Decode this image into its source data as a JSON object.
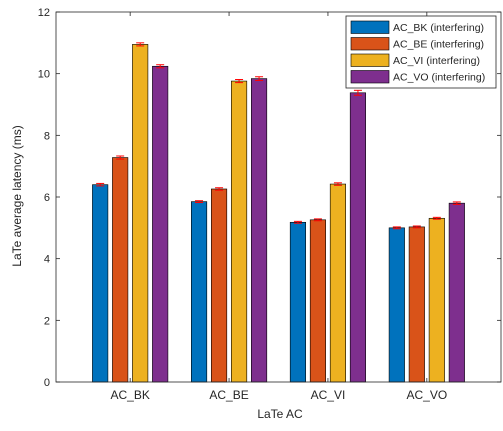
{
  "chart_data": {
    "type": "bar",
    "xlabel": "LaTe AC",
    "ylabel": "LaTe average latency (ms)",
    "ylim": [
      0,
      12
    ],
    "yticks": [
      0,
      2,
      4,
      6,
      8,
      10,
      12
    ],
    "grid": false,
    "legend_position": "top-right",
    "categories": [
      "AC_BK",
      "AC_BE",
      "AC_VI",
      "AC_VO"
    ],
    "series": [
      {
        "name": "AC_BK (interfering)",
        "color": "#0072BD",
        "values": [
          6.4,
          5.85,
          5.18,
          5.0
        ],
        "errors": [
          0.04,
          0.03,
          0.03,
          0.03
        ]
      },
      {
        "name": "AC_BE (interfering)",
        "color": "#D95319",
        "values": [
          7.28,
          6.26,
          5.26,
          5.03
        ],
        "errors": [
          0.05,
          0.04,
          0.03,
          0.03
        ]
      },
      {
        "name": "AC_VI (interfering)",
        "color": "#EDB120",
        "values": [
          10.95,
          9.76,
          6.42,
          5.31
        ],
        "errors": [
          0.05,
          0.05,
          0.04,
          0.03
        ]
      },
      {
        "name": "AC_VO (interfering)",
        "color": "#7E2F8E",
        "values": [
          10.24,
          9.84,
          9.38,
          5.8
        ],
        "errors": [
          0.05,
          0.06,
          0.08,
          0.04
        ]
      }
    ],
    "error_bar_color": "#FF0000"
  }
}
